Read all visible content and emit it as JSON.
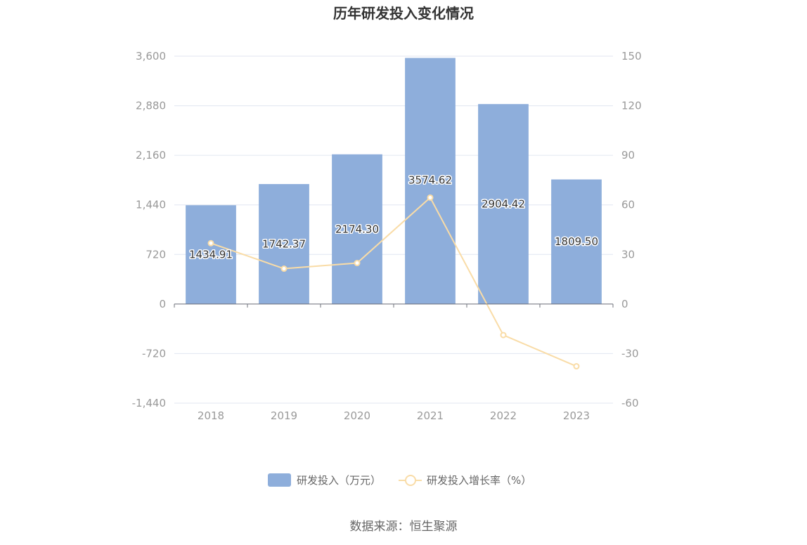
{
  "chart_data": {
    "type": "bar",
    "title": "历年研发投入变化情况",
    "categories": [
      "2018",
      "2019",
      "2020",
      "2021",
      "2022",
      "2023"
    ],
    "series": [
      {
        "name": "研发投入（万元）",
        "type": "bar",
        "axis": "left",
        "values": [
          1434.91,
          1742.37,
          2174.3,
          3574.62,
          2904.42,
          1809.5
        ],
        "labels": [
          "1434.91",
          "1742.37",
          "2174.30",
          "3574.62",
          "2904.42",
          "1809.50"
        ],
        "color": "#8eaedb"
      },
      {
        "name": "研发投入增长率（%）",
        "type": "line",
        "axis": "right",
        "values": [
          36.8,
          21.4,
          24.8,
          64.4,
          -18.8,
          -37.7
        ],
        "color": "#f9dca7"
      }
    ],
    "y_left": {
      "ylim": [
        -1440,
        3600
      ],
      "ticks": [
        "3,600",
        "2,880",
        "2,160",
        "1,440",
        "720",
        "0",
        "-720",
        "-1,440"
      ]
    },
    "y_right": {
      "ylim": [
        -60,
        150
      ],
      "ticks": [
        "150",
        "120",
        "90",
        "60",
        "30",
        "0",
        "-30",
        "-60"
      ]
    },
    "grid": true,
    "legend_position": "bottom"
  },
  "source": "数据来源：恒生聚源"
}
